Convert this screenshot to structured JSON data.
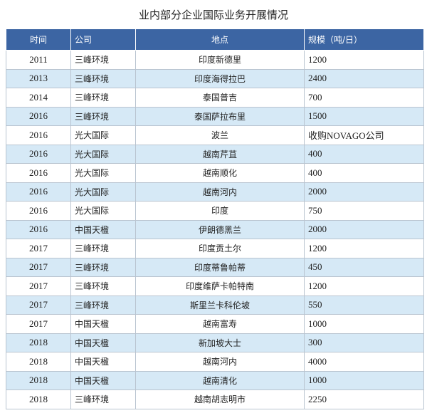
{
  "title": "业内部分企业国际业务开展情况",
  "table": {
    "header": [
      "时间",
      "公司",
      "地点",
      "规模（吨/日）"
    ],
    "rows": [
      [
        "2011",
        "三峰环境",
        "印度新德里",
        "1200"
      ],
      [
        "2013",
        "三峰环境",
        "印度海得拉巴",
        "2400"
      ],
      [
        "2014",
        "三峰环境",
        "泰国普吉",
        "700"
      ],
      [
        "2016",
        "三峰环境",
        "泰国萨拉布里",
        "1500"
      ],
      [
        "2016",
        "光大国际",
        "波兰",
        "收购NOVAGO公司"
      ],
      [
        "2016",
        "光大国际",
        "越南芹苴",
        "400"
      ],
      [
        "2016",
        "光大国际",
        "越南顺化",
        "400"
      ],
      [
        "2016",
        "光大国际",
        "越南河内",
        "2000"
      ],
      [
        "2016",
        "光大国际",
        "印度",
        "750"
      ],
      [
        "2016",
        "中国天楹",
        "伊朗德黑兰",
        "2000"
      ],
      [
        "2017",
        "三峰环境",
        "印度贡土尔",
        "1200"
      ],
      [
        "2017",
        "三峰环境",
        "印度蒂鲁帕蒂",
        "450"
      ],
      [
        "2017",
        "三峰环境",
        "印度维萨卡帕特南",
        "1200"
      ],
      [
        "2017",
        "三峰环境",
        "斯里兰卡科伦坡",
        "550"
      ],
      [
        "2017",
        "中国天楹",
        "越南富寿",
        "1000"
      ],
      [
        "2018",
        "中国天楹",
        "新加坡大士",
        "300"
      ],
      [
        "2018",
        "中国天楹",
        "越南河内",
        "4000"
      ],
      [
        "2018",
        "中国天楹",
        "越南清化",
        "1000"
      ],
      [
        "2018",
        "三峰环境",
        "越南胡志明市",
        "2250"
      ]
    ]
  }
}
